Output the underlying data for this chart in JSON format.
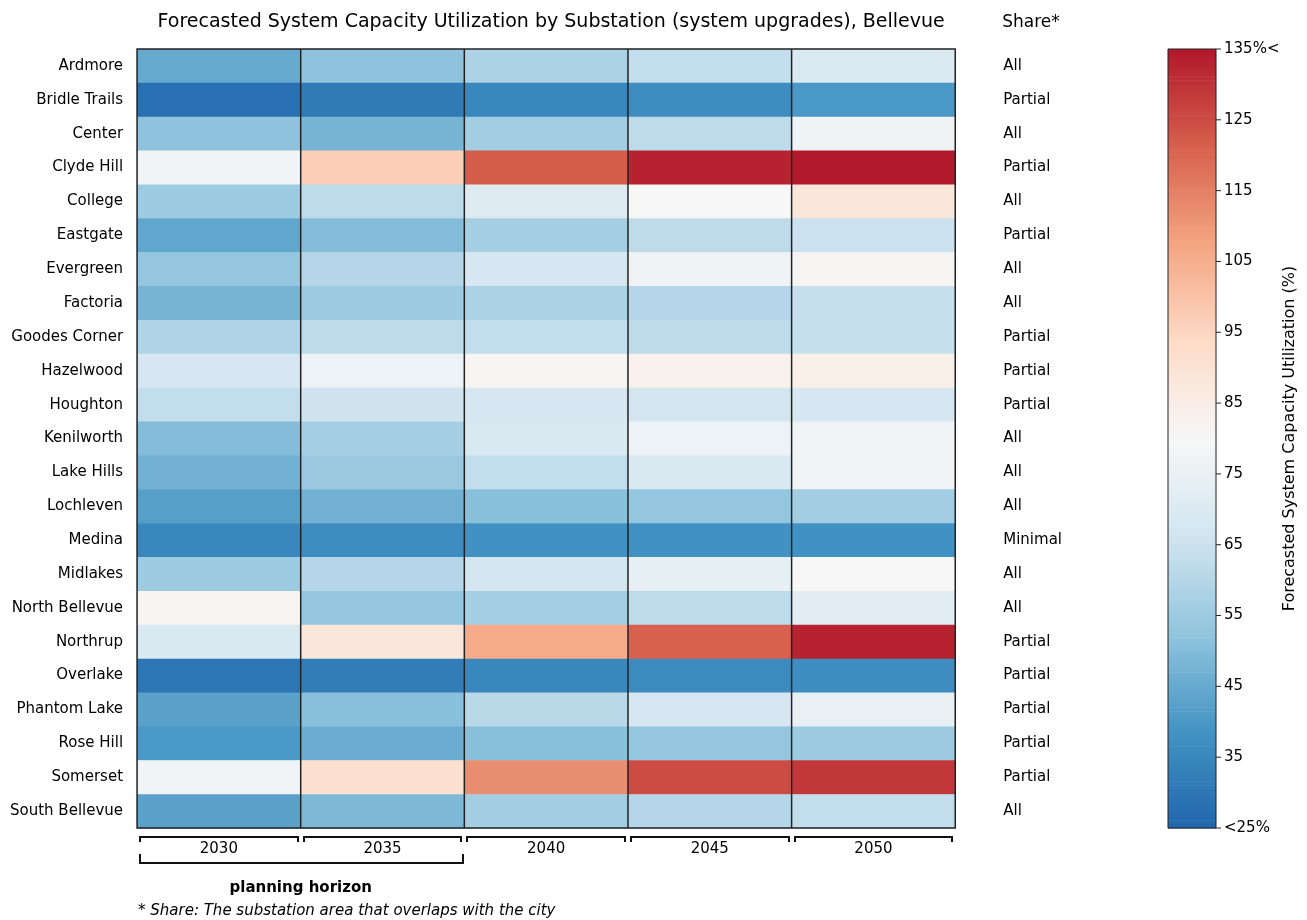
{
  "chart_data": {
    "type": "heatmap",
    "title": "Forecasted System Capacity Utilization by Substation (system upgrades), Bellevue",
    "categories": [
      "2030",
      "2035",
      "2040",
      "2045",
      "2050"
    ],
    "y_categories": [
      "Ardmore",
      "Bridle Trails",
      "Center",
      "Clyde Hill",
      "College",
      "Eastgate",
      "Evergreen",
      "Factoria",
      "Goodes Corner",
      "Hazelwood",
      "Houghton",
      "Kenilworth",
      "Lake Hills",
      "Lochleven",
      "Medina",
      "Midlakes",
      "North Bellevue",
      "Northrup",
      "Overlake",
      "Phantom Lake",
      "Rose Hill",
      "Somerset",
      "South Bellevue"
    ],
    "y2_categories": [
      "All",
      "Partial",
      "All",
      "Partial",
      "All",
      "Partial",
      "All",
      "All",
      "Partial",
      "Partial",
      "Partial",
      "All",
      "All",
      "All",
      "Minimal",
      "All",
      "All",
      "Partial",
      "Partial",
      "Partial",
      "Partial",
      "Partial",
      "All"
    ],
    "cells": [
      [
        45,
        52,
        58,
        63,
        70
      ],
      [
        28,
        31,
        35,
        37,
        40
      ],
      [
        52,
        48,
        56,
        62,
        77
      ],
      [
        78,
        97,
        122,
        133,
        135
      ],
      [
        55,
        62,
        71,
        80,
        88
      ],
      [
        44,
        50,
        57,
        62,
        65
      ],
      [
        53,
        60,
        68,
        77,
        81
      ],
      [
        48,
        55,
        58,
        60,
        64
      ],
      [
        59,
        62,
        63,
        62,
        64
      ],
      [
        68,
        76,
        81,
        83,
        84
      ],
      [
        63,
        66,
        68,
        67,
        68
      ],
      [
        50,
        57,
        69,
        76,
        78
      ],
      [
        47,
        54,
        63,
        69,
        78
      ],
      [
        42,
        47,
        51,
        53,
        56
      ],
      [
        35,
        37,
        38,
        38,
        38
      ],
      [
        55,
        60,
        67,
        74,
        80
      ],
      [
        81,
        53,
        57,
        62,
        72
      ],
      [
        69,
        88,
        106,
        121,
        133
      ],
      [
        30,
        32,
        35,
        36,
        37
      ],
      [
        43,
        51,
        61,
        68,
        75
      ],
      [
        40,
        46,
        51,
        53,
        55
      ],
      [
        78,
        91,
        112,
        125,
        129
      ],
      [
        43,
        49,
        56,
        60,
        63
      ]
    ],
    "clabel": "Forecasted System Capacity Utilization (%)",
    "clim": [
      25,
      135
    ],
    "cticks": [
      {
        "value": 25,
        "label": "<25%"
      },
      35,
      45,
      55,
      65,
      75,
      85,
      95,
      105,
      115,
      125,
      {
        "value": 135,
        "label": "135%<"
      }
    ],
    "annotations": [
      "Share*",
      "planning horizon",
      "* Share: The substation area that overlaps with the city"
    ]
  }
}
